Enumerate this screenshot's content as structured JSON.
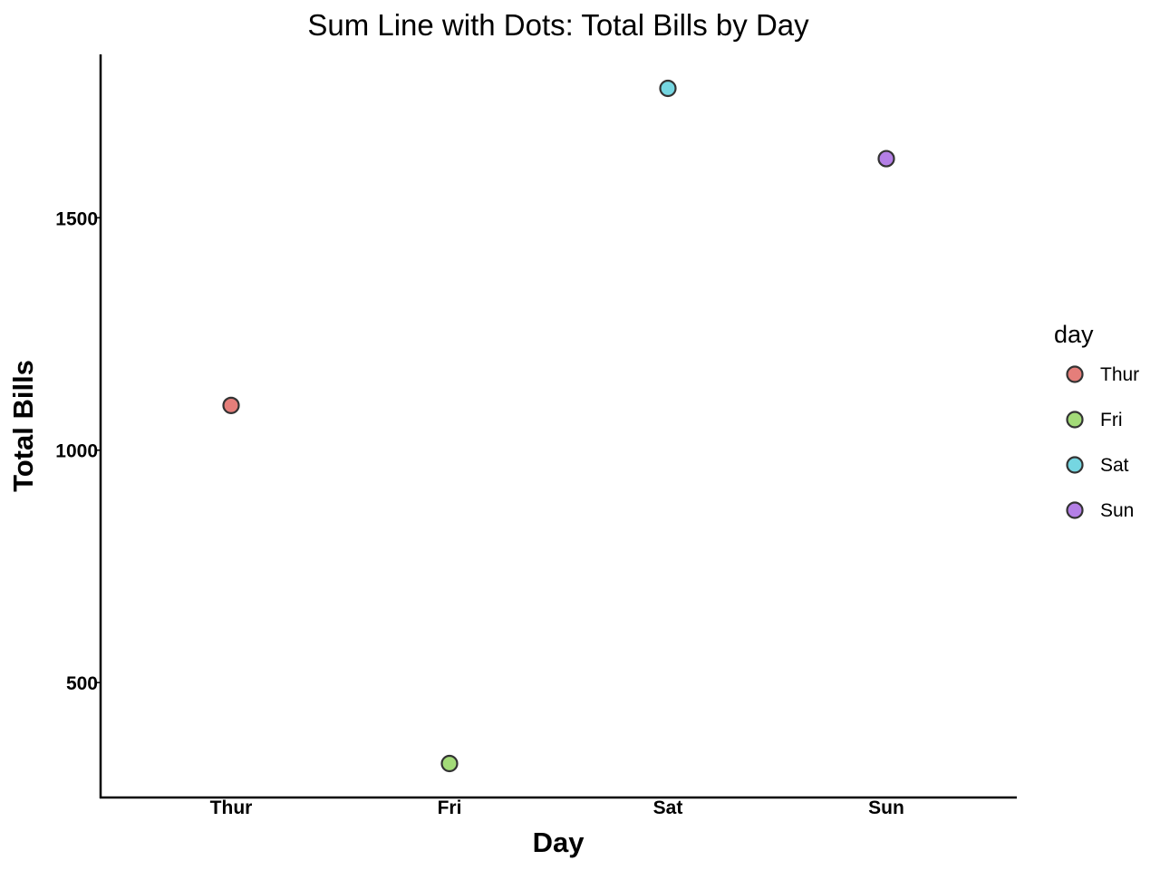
{
  "chart_data": {
    "type": "scatter",
    "title": "Sum Line with Dots: Total Bills by Day",
    "xlabel": "Day",
    "ylabel": "Total Bills",
    "categories": [
      "Thur",
      "Fri",
      "Sat",
      "Sun"
    ],
    "values": [
      1096.33,
      325.88,
      1778.4,
      1627.16
    ],
    "ylim": [
      252.8,
      1851.5
    ],
    "yticks": [
      500,
      1000,
      1500
    ],
    "grid": false,
    "legend": {
      "title": "day",
      "placement": "right",
      "entries": [
        "Thur",
        "Fri",
        "Sat",
        "Sun"
      ]
    },
    "colors": {
      "Thur": "#e57e7a",
      "Fri": "#a3db78",
      "Sat": "#75d6e1",
      "Sun": "#b47fe6"
    },
    "marker_edge_color": "#333333"
  }
}
